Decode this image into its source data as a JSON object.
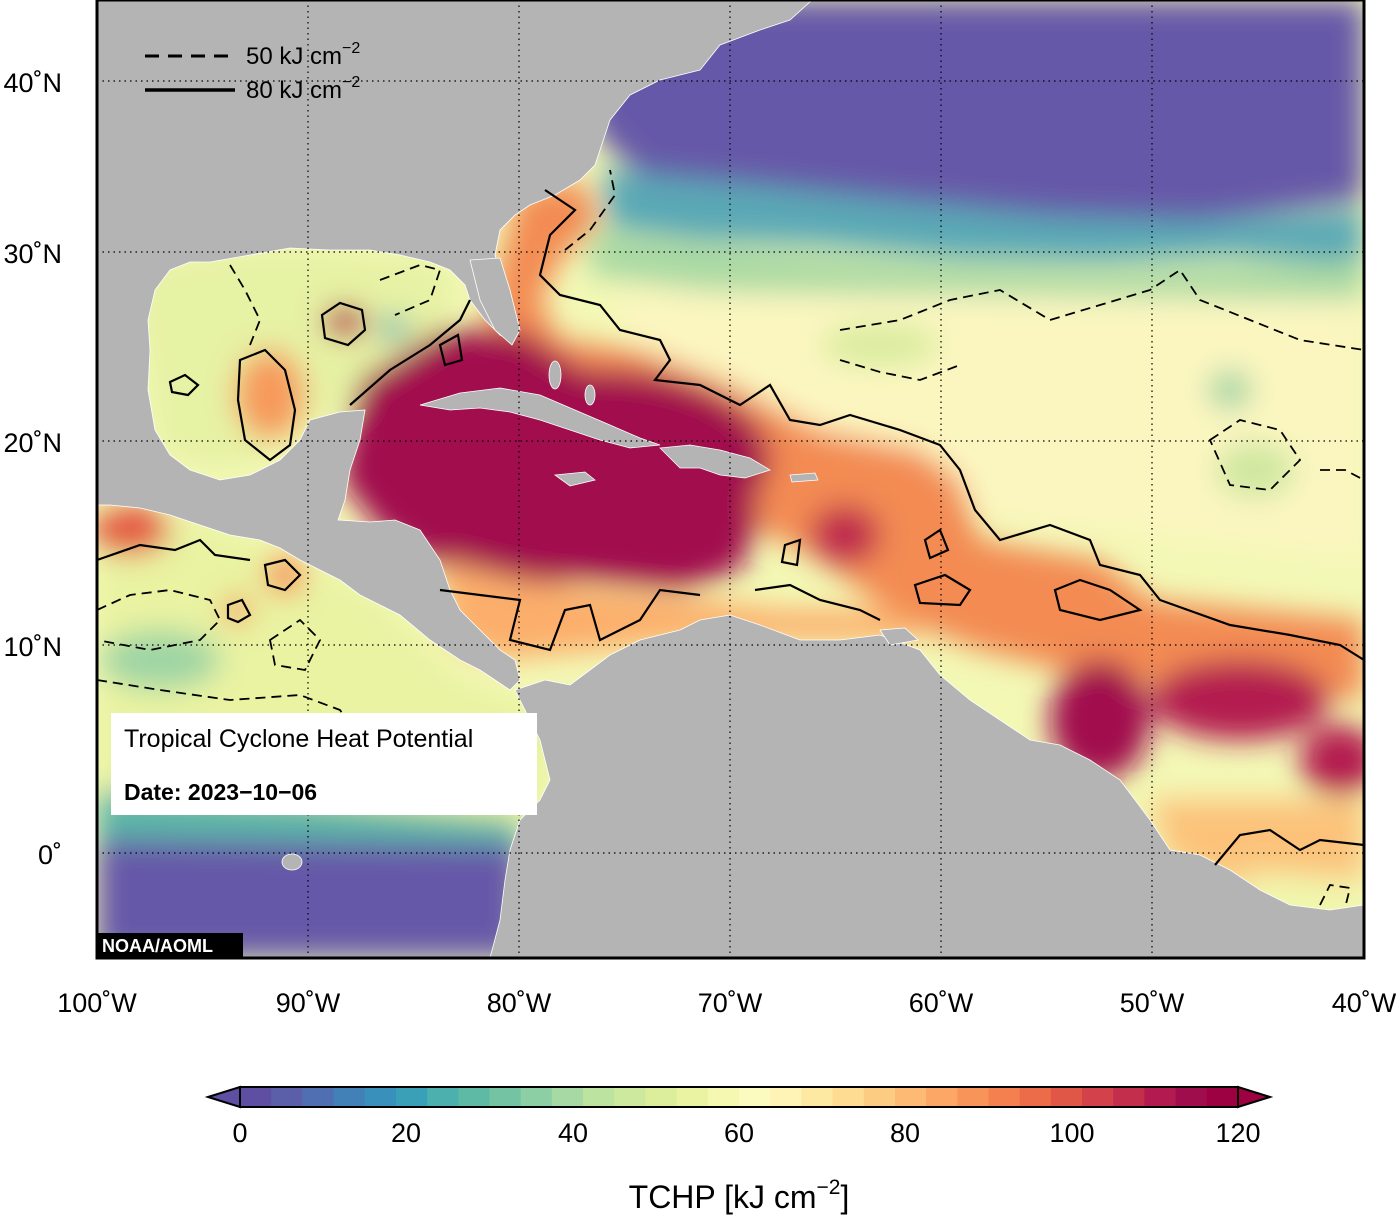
{
  "map": {
    "lon_ticks": [
      "100˚W",
      "90˚W",
      "80˚W",
      "70˚W",
      "60˚W",
      "50˚W",
      "40˚W"
    ],
    "lat_ticks": [
      "40˚N",
      "30˚N",
      "20˚N",
      "10˚N",
      "0˚"
    ],
    "colors": {
      "land": "#b4b4b4",
      "contour": "#000000",
      "ocean_cold": "#6658a8"
    }
  },
  "legend": {
    "dashed_value": "50 kJ cm",
    "solid_value": "80 kJ cm",
    "unit_exponent": "−2"
  },
  "info_box": {
    "title": "Tropical Cyclone Heat Potential",
    "date": "Date: 2023−10−06"
  },
  "credit": "NOAA/AOML",
  "colorbar": {
    "tick_labels": [
      "0",
      "20",
      "40",
      "60",
      "80",
      "100",
      "120"
    ],
    "title_main": "TCHP [kJ cm",
    "title_exp": "−2",
    "title_close": "]",
    "colors": [
      "#5e4fa2",
      "#5b5fa9",
      "#4f6fb2",
      "#4280b8",
      "#3990ba",
      "#3aa0b8",
      "#4bb0ae",
      "#5eb9a5",
      "#74c4a4",
      "#8dcfa4",
      "#a6d9a4",
      "#bde3a1",
      "#cde99e",
      "#dcee9c",
      "#e9f3a2",
      "#f4f8b0",
      "#fbfbbf",
      "#fff3b5",
      "#fee9a3",
      "#fedc92",
      "#fdcc83",
      "#fdba74",
      "#fca766",
      "#f89459",
      "#f4804f",
      "#ec6b49",
      "#e05647",
      "#d3414a",
      "#c42e4d",
      "#b31a4f",
      "#a00d4d",
      "#9e0142"
    ]
  }
}
